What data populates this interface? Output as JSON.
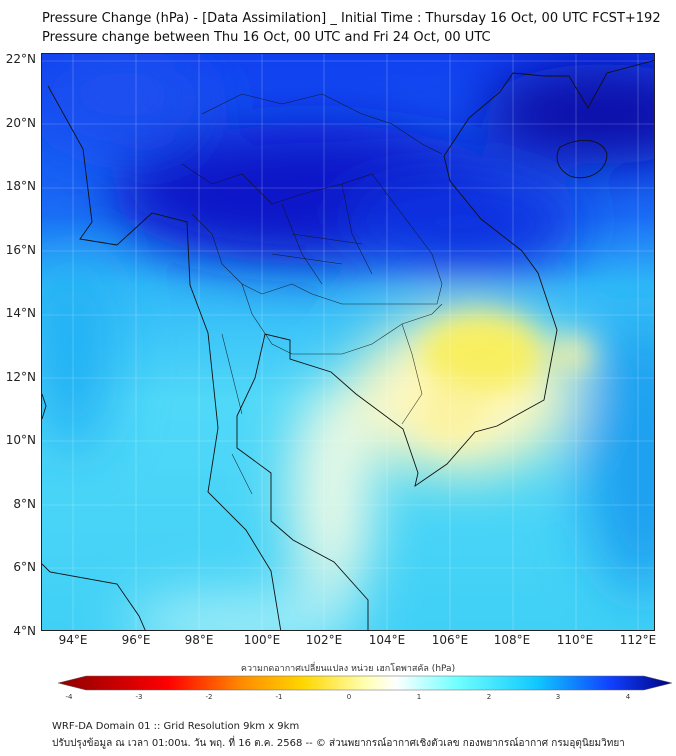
{
  "title": {
    "line1": "Pressure Change (hPa) - [Data Assimilation] _ Initial Time : Thursday 16 Oct, 00 UTC FCST+192",
    "line2": "Pressure change between Thu 16 Oct, 00 UTC and Fri 24 Oct, 00 UTC"
  },
  "axes": {
    "lat_labels": [
      "22°N",
      "20°N",
      "18°N",
      "16°N",
      "14°N",
      "12°N",
      "10°N",
      "8°N",
      "6°N",
      "4°N"
    ],
    "lon_labels": [
      "94°E",
      "96°E",
      "98°E",
      "100°E",
      "102°E",
      "104°E",
      "106°E",
      "108°E",
      "110°E",
      "112°E"
    ]
  },
  "colorbar": {
    "title": "ความกดอากาศเปลี่ยนแปลง หน่วย เฮกโตพาสคัล (hPa)",
    "ticks": [
      "-4",
      "-3",
      "-2",
      "-1",
      "0",
      "1",
      "2",
      "3",
      "4"
    ],
    "range": [
      -4,
      4
    ],
    "colors": [
      "#8b0000",
      "#ff0000",
      "#ff8c00",
      "#ffd700",
      "#ffffa0",
      "#ffffff",
      "#a0ffff",
      "#20d0ff",
      "#1060ff",
      "#000080"
    ]
  },
  "field": {
    "min_region": "yellow near 106-107°E 12-13°N (~ -1 hPa)",
    "max_region": "dark blue near 100°E 18°N (~ +4 hPa)"
  },
  "footer": {
    "line1": "WRF-DA Domain 01 :: Grid Resolution 9km x 9km",
    "line2": "ปรับปรุงข้อมูล ณ เวลา 01:00น. วัน พฤ. ที่ 16 ต.ค. 2568 -- © ส่วนพยากรณ์อากาศเชิงตัวเลข กองพยากรณ์อากาศ กรมอุตุนิยมวิทยา"
  }
}
